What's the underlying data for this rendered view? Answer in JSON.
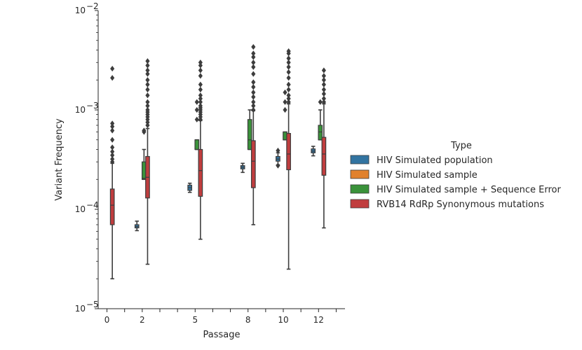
{
  "chart_data": {
    "type": "box",
    "xlabel": "Passage",
    "ylabel": "Variant Frequency",
    "yscale": "log",
    "ylim": [
      1e-05,
      0.01
    ],
    "yticks": [
      {
        "value": 1e-05,
        "base": "10",
        "exp": "−5"
      },
      {
        "value": 0.0001,
        "base": "10",
        "exp": "−4"
      },
      {
        "value": 0.001,
        "base": "10",
        "exp": "−3"
      },
      {
        "value": 0.01,
        "base": "10",
        "exp": "−2"
      }
    ],
    "categories": [
      0,
      1,
      2,
      3,
      4,
      5,
      6,
      7,
      8,
      9,
      10,
      11,
      12,
      13
    ],
    "tick_labels": [
      "0",
      "",
      "2",
      "",
      "",
      "5",
      "",
      "",
      "8",
      "",
      "10",
      "",
      "12",
      ""
    ],
    "legend": {
      "title": "Type",
      "placement": "center-right",
      "entries": [
        {
          "name": "HIV Simulated population",
          "color": "#3274a1"
        },
        {
          "name": "HIV Simulated sample",
          "color": "#e1812c"
        },
        {
          "name": "HIV Simulated sample + Sequence Error",
          "color": "#3a923a"
        },
        {
          "name": "RVB14 RdRp Synonymous mutations",
          "color": "#c03d3e"
        }
      ]
    },
    "series": [
      {
        "name": "HIV Simulated population",
        "color": "#3274a1",
        "boxes": [
          {
            "x": 2,
            "q1": 6.5e-05,
            "median": 6.7e-05,
            "q3": 7e-05,
            "whislo": 6.1e-05,
            "whishi": 7.6e-05,
            "fliers": []
          },
          {
            "x": 5,
            "q1": 0.000155,
            "median": 0.000165,
            "q3": 0.000175,
            "whislo": 0.000148,
            "whishi": 0.000183,
            "fliers": []
          },
          {
            "x": 8,
            "q1": 0.000255,
            "median": 0.000265,
            "q3": 0.000275,
            "whislo": 0.000235,
            "whishi": 0.00029,
            "fliers": []
          },
          {
            "x": 10,
            "q1": 0.000305,
            "median": 0.00032,
            "q3": 0.00034,
            "whislo": 0.00028,
            "whishi": 0.00037,
            "fliers": [
              0.000275,
              0.00039
            ]
          },
          {
            "x": 12,
            "q1": 0.00037,
            "median": 0.000385,
            "q3": 0.000405,
            "whislo": 0.000345,
            "whishi": 0.00043,
            "fliers": []
          }
        ]
      },
      {
        "name": "HIV Simulated sample",
        "color": "#e1812c",
        "boxes": []
      },
      {
        "name": "HIV Simulated sample + Sequence Error",
        "color": "#3a923a",
        "boxes": [
          {
            "x": 2,
            "q1": 0.0002,
            "median": 0.000205,
            "q3": 0.0003,
            "whislo": 0.0002,
            "whishi": 0.0004,
            "fliers": [
              0.0006,
              0.00062
            ]
          },
          {
            "x": 5,
            "q1": 0.0004,
            "median": 0.0004,
            "q3": 0.0005,
            "whislo": 0.0004,
            "whishi": 0.0005,
            "fliers": [
              0.0008,
              0.001,
              0.0012
            ]
          },
          {
            "x": 8,
            "q1": 0.0004,
            "median": 0.0005,
            "q3": 0.0008,
            "whislo": 0.0004,
            "whishi": 0.001,
            "fliers": []
          },
          {
            "x": 10,
            "q1": 0.0005,
            "median": 0.0005,
            "q3": 0.0006,
            "whislo": 0.0005,
            "whishi": 0.0006,
            "fliers": [
              0.001,
              0.0012,
              0.0015
            ]
          },
          {
            "x": 12,
            "q1": 0.0005,
            "median": 0.0006,
            "q3": 0.0007,
            "whislo": 0.0005,
            "whishi": 0.001,
            "fliers": [
              0.0012
            ]
          }
        ]
      },
      {
        "name": "RVB14 RdRp Synonymous mutations",
        "color": "#c03d3e",
        "boxes": [
          {
            "x": 0,
            "q1": 7e-05,
            "median": 0.00011,
            "q3": 0.00016,
            "whislo": 2e-05,
            "whishi": 0.00029,
            "fliers": [
              0.0003,
              0.00032,
              0.00035,
              0.00038,
              0.00042,
              0.0005,
              0.00062,
              0.00068,
              0.00073,
              0.0021,
              0.0026
            ]
          },
          {
            "x": 2,
            "q1": 0.00013,
            "median": 0.00021,
            "q3": 0.00034,
            "whislo": 2.8e-05,
            "whishi": 0.00065,
            "fliers": [
              0.0007,
              0.00075,
              0.0008,
              0.00085,
              0.0009,
              0.00095,
              0.001,
              0.0011,
              0.0012,
              0.0014,
              0.0016,
              0.0018,
              0.002,
              0.0023,
              0.0025,
              0.0028,
              0.0031
            ]
          },
          {
            "x": 5,
            "q1": 0.000135,
            "median": 0.000245,
            "q3": 0.0004,
            "whislo": 5e-05,
            "whishi": 0.00078,
            "fliers": [
              0.0008,
              0.00085,
              0.0009,
              0.00095,
              0.001,
              0.00105,
              0.0011,
              0.0012,
              0.0013,
              0.0014,
              0.0016,
              0.0018,
              0.0022,
              0.0025,
              0.0028,
              0.003
            ]
          },
          {
            "x": 8,
            "q1": 0.000165,
            "median": 0.000305,
            "q3": 0.00049,
            "whislo": 7e-05,
            "whishi": 0.00098,
            "fliers": [
              0.001,
              0.0011,
              0.0012,
              0.00135,
              0.0015,
              0.0017,
              0.0019,
              0.0023,
              0.0027,
              0.003,
              0.0034,
              0.0037,
              0.0043
            ]
          },
          {
            "x": 10,
            "q1": 0.00025,
            "median": 0.00036,
            "q3": 0.00058,
            "whislo": 2.5e-05,
            "whishi": 0.00115,
            "fliers": [
              0.0012,
              0.0013,
              0.0014,
              0.0016,
              0.0018,
              0.0021,
              0.0024,
              0.0027,
              0.003,
              0.0033,
              0.0037,
              0.0039
            ]
          },
          {
            "x": 12,
            "q1": 0.00022,
            "median": 0.00036,
            "q3": 0.00053,
            "whislo": 6.5e-05,
            "whishi": 0.00115,
            "fliers": [
              0.0012,
              0.0013,
              0.00145,
              0.0016,
              0.0018,
              0.002,
              0.0022,
              0.0025
            ]
          }
        ]
      }
    ]
  }
}
